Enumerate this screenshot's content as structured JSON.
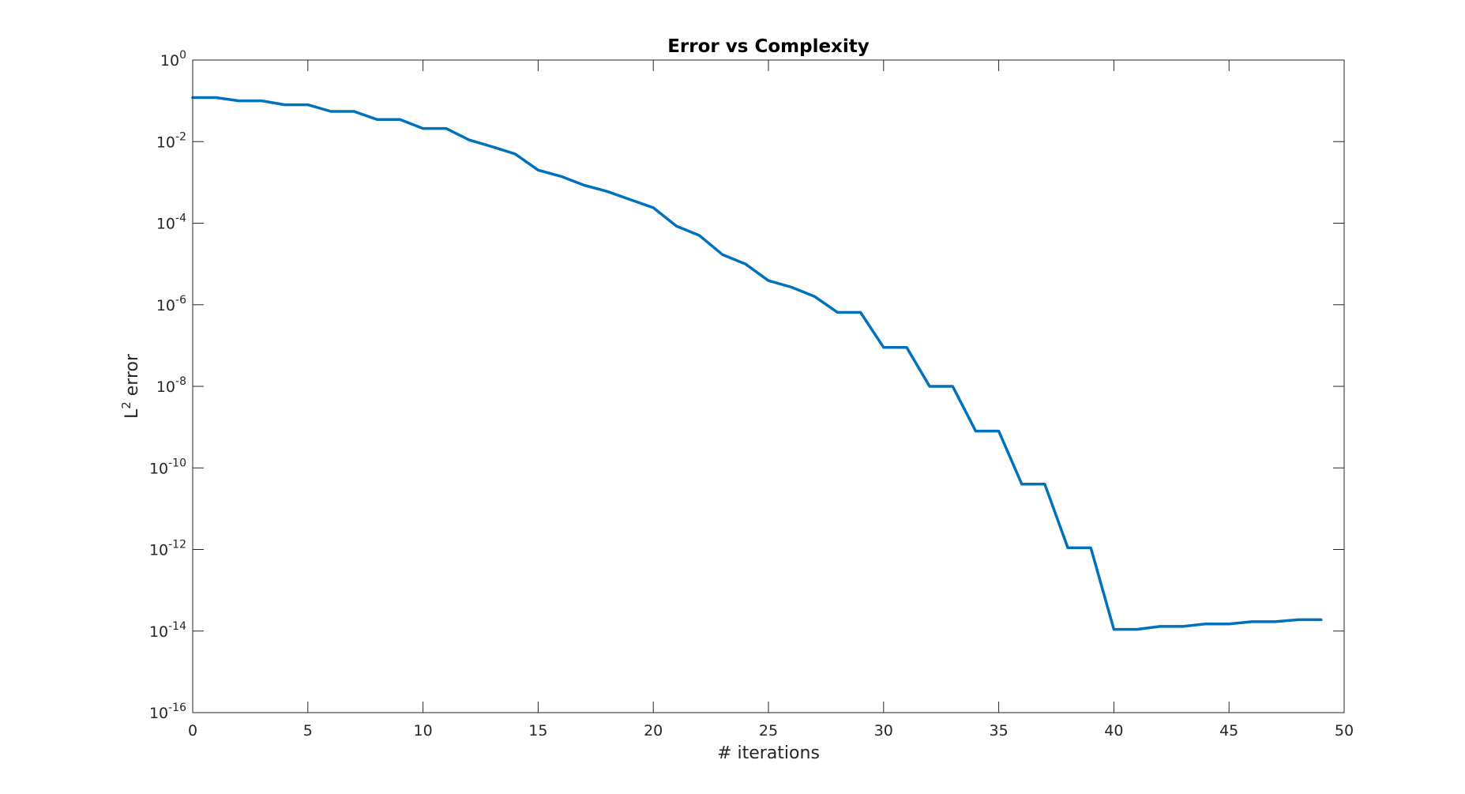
{
  "chart_data": {
    "type": "line",
    "title": "Error vs Complexity",
    "xlabel": "# iterations",
    "ylabel": {
      "base": "L",
      "superscript": "2",
      "rest": " error"
    },
    "xlim": [
      0,
      50
    ],
    "ylim": [
      1e-16,
      1
    ],
    "yscale": "log",
    "grid": false,
    "legend": "none",
    "line_color": "#0072BD",
    "x_ticks": [
      0,
      5,
      10,
      15,
      20,
      25,
      30,
      35,
      40,
      45,
      50
    ],
    "y_ticks": [
      {
        "exp": 0,
        "base": "10",
        "sup": "0"
      },
      {
        "exp": -2,
        "base": "10",
        "sup": "-2"
      },
      {
        "exp": -4,
        "base": "10",
        "sup": "-4"
      },
      {
        "exp": -6,
        "base": "10",
        "sup": "-6"
      },
      {
        "exp": -8,
        "base": "10",
        "sup": "-8"
      },
      {
        "exp": -10,
        "base": "10",
        "sup": "-10"
      },
      {
        "exp": -12,
        "base": "10",
        "sup": "-12"
      },
      {
        "exp": -14,
        "base": "10",
        "sup": "-14"
      },
      {
        "exp": -16,
        "base": "10",
        "sup": "-16"
      }
    ],
    "series": [
      {
        "x": [
          0,
          1,
          2,
          3,
          4,
          5,
          6,
          7,
          8,
          9,
          10,
          11,
          12,
          13,
          14,
          15,
          16,
          17,
          18,
          19,
          20,
          21,
          22,
          23,
          24,
          25,
          26,
          27,
          28,
          29,
          30,
          31,
          32,
          33,
          34,
          35,
          36,
          37,
          38,
          39,
          40,
          41,
          42,
          43,
          44,
          45,
          46,
          47,
          48,
          49
        ],
        "y": [
          0.12,
          0.12,
          0.1,
          0.1,
          0.08,
          0.08,
          0.055,
          0.055,
          0.035,
          0.035,
          0.021,
          0.021,
          0.011,
          0.0075,
          0.005,
          0.002,
          0.0014,
          0.00085,
          0.0006,
          0.00038,
          0.00024,
          8.5e-05,
          5e-05,
          1.7e-05,
          1e-05,
          3.9e-06,
          2.7e-06,
          1.6e-06,
          6.5e-07,
          6.5e-07,
          9e-08,
          9e-08,
          1e-08,
          1e-08,
          8e-10,
          8e-10,
          4e-11,
          4e-11,
          1.1e-12,
          1.1e-12,
          1.1e-14,
          1.1e-14,
          1.3e-14,
          1.3e-14,
          1.5e-14,
          1.5e-14,
          1.7e-14,
          1.7e-14,
          1.9e-14,
          1.9e-14
        ]
      }
    ]
  }
}
